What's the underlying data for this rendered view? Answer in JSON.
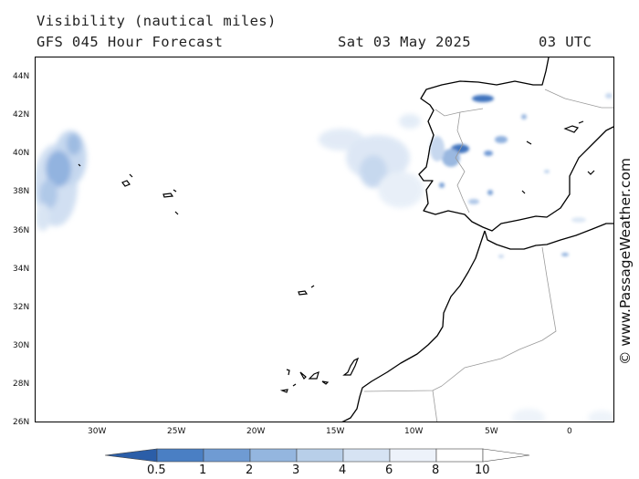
{
  "header": {
    "title": "Visibility (nautical miles)",
    "model_line": "GFS 045 Hour Forecast",
    "date": "Sat 03 May 2025",
    "time": "03 UTC"
  },
  "axes": {
    "lat_labels": [
      "44N",
      "42N",
      "40N",
      "38N",
      "36N",
      "34N",
      "32N",
      "30N",
      "28N",
      "26N"
    ],
    "lon_labels": [
      "30W",
      "25W",
      "20W",
      "15W",
      "10W",
      "5W",
      "0"
    ]
  },
  "credit": "© www.PassageWeather.com",
  "legend": {
    "labels": [
      "0.5",
      "1",
      "2",
      "3",
      "4",
      "6",
      "8",
      "10"
    ],
    "colors": [
      "#2b5ea8",
      "#4a7fc4",
      "#6f9bd3",
      "#94b6df",
      "#b8cfe9",
      "#d6e3f3",
      "#edf2fa",
      "#ffffff"
    ]
  },
  "colors": {
    "coastline": "#000000",
    "border": "#9a9a9a",
    "fog": "#5b8ed0"
  }
}
